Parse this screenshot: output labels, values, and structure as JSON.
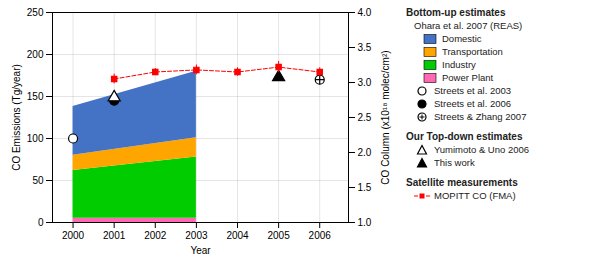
{
  "chart_data": {
    "type": "combo",
    "xlabel": "Year",
    "ylabel": "CO Emissions (Tg/year)",
    "y2label": "CO Column (x10¹⁸ molec/cm²)",
    "xlim": [
      1999.5,
      2006.7
    ],
    "xticks": [
      2000,
      2001,
      2002,
      2003,
      2004,
      2005,
      2006
    ],
    "ylim": [
      0,
      250
    ],
    "yticks": [
      0,
      50,
      100,
      150,
      200,
      250
    ],
    "y2lim": [
      1.0,
      4.0
    ],
    "y2ticks": [
      {
        "value": 1.0,
        "label": "1.0"
      },
      1.5,
      {
        "value": 2.0,
        "label": "2.0"
      },
      2.5,
      {
        "value": 3.0,
        "label": "3.0"
      },
      3.5,
      {
        "value": 4.0,
        "label": "4.0"
      }
    ],
    "grid": true,
    "stacked": true,
    "legend": "right",
    "series": [
      {
        "name": "Power Plant",
        "type": "area",
        "color": "#FF69B4",
        "group": "Bottom-up estimates",
        "source": "Ohara et al. 2007 (REAS)",
        "x": [
          2000,
          2003
        ],
        "values": [
          5,
          5
        ]
      },
      {
        "name": "Industry",
        "type": "area",
        "color": "#00CC00",
        "group": "Bottom-up estimates",
        "source": "Ohara et al. 2007 (REAS)",
        "x": [
          2000,
          2003
        ],
        "values": [
          57,
          73
        ]
      },
      {
        "name": "Transportation",
        "type": "area",
        "color": "#FFA500",
        "group": "Bottom-up estimates",
        "source": "Ohara et al. 2007 (REAS)",
        "x": [
          2000,
          2003
        ],
        "values": [
          18,
          23
        ]
      },
      {
        "name": "Domestic",
        "type": "area",
        "color": "#4472C4",
        "group": "Bottom-up estimates",
        "source": "Ohara et al. 2007 (REAS)",
        "x": [
          2000,
          2003
        ],
        "values": [
          58,
          79
        ]
      },
      {
        "name": "Streets et al. 2003",
        "type": "scatter",
        "marker": "circle_open",
        "color": "black",
        "group": "Bottom-up estimates",
        "x": [
          2000
        ],
        "values": [
          100
        ]
      },
      {
        "name": "Streets et al. 2006",
        "type": "scatter",
        "marker": "circle",
        "color": "black",
        "group": "Bottom-up estimates",
        "x": [
          2001
        ],
        "values": [
          145
        ]
      },
      {
        "name": "Streets & Zhang 2007",
        "type": "scatter",
        "marker": "circle_plus",
        "color": "black",
        "group": "Bottom-up estimates",
        "x": [
          2006
        ],
        "values": [
          170
        ]
      },
      {
        "name": "Yumimoto & Uno 2006",
        "type": "scatter",
        "marker": "triangle_open",
        "color": "black",
        "group": "Our Top-down estimates",
        "x": [
          2001
        ],
        "values": [
          149
        ]
      },
      {
        "name": "This work",
        "type": "scatter",
        "marker": "triangle",
        "color": "black",
        "group": "Our Top-down estimates",
        "x": [
          2005
        ],
        "values": [
          173
        ]
      },
      {
        "name": "MOPITT CO (FMA)",
        "type": "line",
        "axis": "y2",
        "marker": "square",
        "line_style": "dashed",
        "color": "#FF0000",
        "group": "Satellite measurements",
        "x": [
          2001,
          2002,
          2003,
          2004,
          2005,
          2006
        ],
        "values": [
          3.05,
          3.15,
          3.18,
          3.15,
          3.22,
          3.15
        ],
        "errors": [
          0.07,
          0.05,
          0.07,
          0.06,
          0.08,
          0.06
        ]
      }
    ]
  }
}
